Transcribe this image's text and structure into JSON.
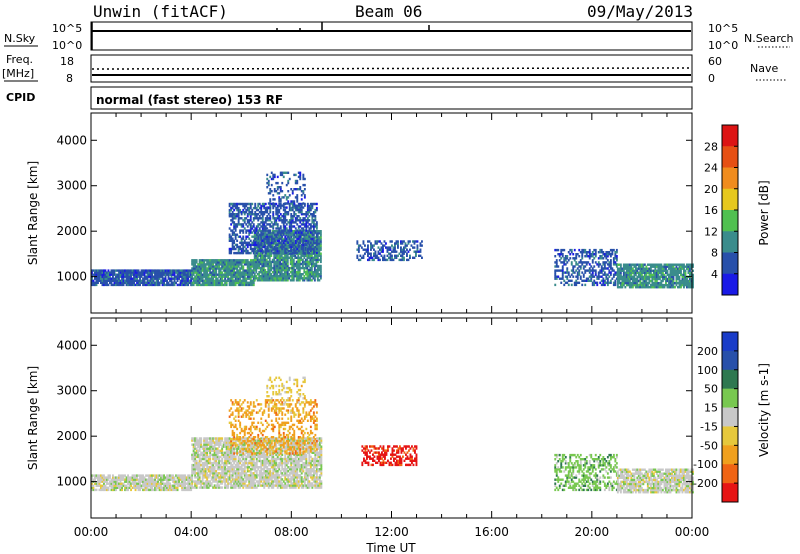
{
  "header": {
    "station": "Unwin (fitACF)",
    "beam": "Beam 06",
    "date": "09/May/2013"
  },
  "summary_panels": {
    "nsky": {
      "label": "N.Sky",
      "top": "10^5",
      "bottom": "10^0"
    },
    "nsearch": {
      "label": "N.Search",
      "top": "10^5",
      "bottom": "10^0"
    },
    "freq": {
      "label_line1": "Freq.",
      "label_line2": "[MHz]",
      "top": "18",
      "bottom": "8"
    },
    "nave": {
      "label": "Nave",
      "top": "60",
      "bottom": "0"
    },
    "cpid": {
      "label": "CPID",
      "text": "normal (fast stereo) 153 RF"
    }
  },
  "colors": {
    "power_scale": [
      "#1a1ae6",
      "#2850aa",
      "#3a8c8c",
      "#50c050",
      "#e6c81e",
      "#f08c1e",
      "#e65014",
      "#dc1414"
    ],
    "velocity_scale": [
      "#e61414",
      "#f06414",
      "#f0a01e",
      "#e6c83c",
      "#c8c8c8",
      "#78c850",
      "#2e7850",
      "#2850aa",
      "#1a3cc8"
    ]
  },
  "chart_data": [
    {
      "type": "heatmap",
      "name_label": "Power [dB]",
      "ylabel": "Slant Range [km]",
      "yticks": [
        "1000",
        "2000",
        "3000",
        "4000"
      ],
      "ylim": [
        200,
        4600
      ],
      "xlim": [
        0,
        24
      ],
      "colorbar_ticks": [
        "4",
        "8",
        "12",
        "16",
        "20",
        "24",
        "28"
      ],
      "bands": [
        {
          "x0": 0.0,
          "x1": 4.0,
          "r0": 800,
          "r1": 1150,
          "density": 0.9,
          "level": 1
        },
        {
          "x0": 4.0,
          "x1": 6.5,
          "r0": 800,
          "r1": 1350,
          "density": 0.9,
          "level": 2
        },
        {
          "x0": 6.5,
          "x1": 9.2,
          "r0": 900,
          "r1": 2000,
          "density": 0.85,
          "level": 2
        },
        {
          "x0": 5.5,
          "x1": 9.0,
          "r0": 1500,
          "r1": 2600,
          "density": 0.6,
          "level": 1
        },
        {
          "x0": 7.0,
          "x1": 8.5,
          "r0": 2500,
          "r1": 3300,
          "density": 0.3,
          "level": 1
        },
        {
          "x0": 10.6,
          "x1": 13.2,
          "r0": 1350,
          "r1": 1800,
          "density": 0.45,
          "level": 1
        },
        {
          "x0": 18.5,
          "x1": 21.0,
          "r0": 800,
          "r1": 1600,
          "density": 0.45,
          "level": 1
        },
        {
          "x0": 21.0,
          "x1": 24.0,
          "r0": 750,
          "r1": 1250,
          "density": 0.85,
          "level": 2
        }
      ]
    },
    {
      "type": "heatmap",
      "name_label": "Velocity [m s-1]",
      "ylabel": "Slant Range [km]",
      "xlabel": "Time UT",
      "xticks": [
        "00:00",
        "04:00",
        "08:00",
        "12:00",
        "16:00",
        "20:00",
        "00:00"
      ],
      "yticks": [
        "1000",
        "2000",
        "3000",
        "4000"
      ],
      "ylim": [
        200,
        4600
      ],
      "xlim": [
        0,
        24
      ],
      "colorbar_ticks": [
        "200",
        "100",
        "50",
        "15",
        "-15",
        "-50",
        "-100",
        "-200"
      ],
      "bands": [
        {
          "x0": 0.0,
          "x1": 4.0,
          "r0": 800,
          "r1": 1150,
          "density": 0.85,
          "level": 4
        },
        {
          "x0": 4.0,
          "x1": 9.2,
          "r0": 850,
          "r1": 1950,
          "density": 0.8,
          "level": 4
        },
        {
          "x0": 5.5,
          "x1": 9.0,
          "r0": 1600,
          "r1": 2800,
          "density": 0.35,
          "level": 2
        },
        {
          "x0": 7.0,
          "x1": 8.5,
          "r0": 2500,
          "r1": 3300,
          "density": 0.25,
          "level": 3
        },
        {
          "x0": 10.8,
          "x1": 13.0,
          "r0": 1350,
          "r1": 1800,
          "density": 0.5,
          "level": 0
        },
        {
          "x0": 18.5,
          "x1": 21.0,
          "r0": 800,
          "r1": 1600,
          "density": 0.45,
          "level": 5
        },
        {
          "x0": 21.0,
          "x1": 24.0,
          "r0": 750,
          "r1": 1250,
          "density": 0.8,
          "level": 4
        }
      ]
    }
  ]
}
